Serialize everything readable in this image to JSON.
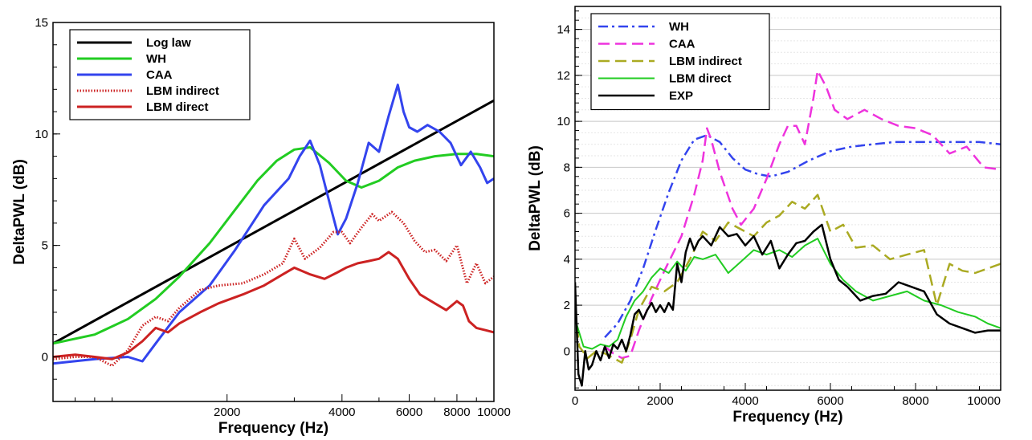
{
  "chart_data": [
    {
      "type": "line",
      "xlabel": "Frequency (Hz)",
      "ylabel": "DeltaPWL (dB)",
      "xscale": "log",
      "xlim": [
        700,
        10000
      ],
      "ylim": [
        -2,
        15
      ],
      "xticks": [
        2000,
        4000,
        6000,
        8000,
        10000
      ],
      "xtick_labels": [
        "2000",
        "4000",
        "6000",
        "8000",
        "10000"
      ],
      "yticks": [
        0,
        5,
        10,
        15
      ],
      "ytick_labels": [
        "0",
        "5",
        "10",
        "15"
      ],
      "grid": false,
      "legend_position": "top-left",
      "series": [
        {
          "name": "Log law",
          "color": "#000000",
          "dash": "solid",
          "width": 3,
          "x": [
            700,
            10000
          ],
          "y": [
            0.6,
            11.5
          ]
        },
        {
          "name": "WH",
          "color": "#22cc22",
          "dash": "solid",
          "width": 3,
          "x": [
            700,
            900,
            1100,
            1300,
            1500,
            1800,
            2100,
            2400,
            2700,
            3000,
            3300,
            3700,
            4100,
            4500,
            5000,
            5600,
            6200,
            7000,
            8000,
            9000,
            10000
          ],
          "y": [
            0.6,
            1.0,
            1.7,
            2.6,
            3.6,
            5.1,
            6.6,
            7.9,
            8.8,
            9.3,
            9.4,
            8.7,
            7.9,
            7.6,
            7.9,
            8.5,
            8.8,
            9.0,
            9.1,
            9.1,
            9.0
          ]
        },
        {
          "name": "CAA",
          "color": "#3344ee",
          "dash": "solid",
          "width": 3,
          "x": [
            700,
            900,
            1100,
            1200,
            1300,
            1500,
            1800,
            2100,
            2500,
            2900,
            3100,
            3300,
            3500,
            3700,
            3900,
            4100,
            4400,
            4700,
            5000,
            5300,
            5600,
            5800,
            6000,
            6300,
            6700,
            7200,
            7700,
            8200,
            8700,
            9200,
            9600,
            10000
          ],
          "y": [
            -0.3,
            -0.1,
            0.0,
            -0.2,
            0.6,
            2.0,
            3.2,
            4.8,
            6.8,
            8.0,
            9.0,
            9.7,
            8.6,
            7.0,
            5.5,
            6.2,
            7.8,
            9.6,
            9.2,
            10.8,
            12.2,
            11.0,
            10.3,
            10.1,
            10.4,
            10.1,
            9.6,
            8.6,
            9.2,
            8.5,
            7.8,
            8.0
          ]
        },
        {
          "name": "LBM indirect",
          "color": "#cc2222",
          "dash": "dotted",
          "width": 3,
          "x": [
            700,
            800,
            900,
            1000,
            1100,
            1200,
            1300,
            1400,
            1500,
            1700,
            1900,
            2200,
            2500,
            2800,
            3000,
            3200,
            3500,
            3800,
            4000,
            4200,
            4500,
            4800,
            5000,
            5400,
            5800,
            6200,
            6600,
            7000,
            7500,
            8000,
            8500,
            9000,
            9500,
            10000
          ],
          "y": [
            -0.1,
            0.0,
            0.0,
            -0.4,
            0.3,
            1.4,
            1.8,
            1.6,
            2.2,
            3.0,
            3.2,
            3.3,
            3.7,
            4.2,
            5.3,
            4.4,
            4.9,
            5.6,
            5.6,
            5.1,
            5.8,
            6.4,
            6.1,
            6.5,
            6.0,
            5.2,
            4.7,
            4.8,
            4.3,
            5.0,
            3.3,
            4.2,
            3.3,
            3.6
          ]
        },
        {
          "name": "LBM direct",
          "color": "#cc2222",
          "dash": "solid",
          "width": 3,
          "x": [
            700,
            800,
            900,
            1000,
            1100,
            1200,
            1300,
            1400,
            1500,
            1700,
            1900,
            2200,
            2500,
            2800,
            3000,
            3300,
            3600,
            3900,
            4100,
            4400,
            4700,
            5000,
            5300,
            5600,
            6000,
            6400,
            7000,
            7500,
            8000,
            8300,
            8600,
            9000,
            9500,
            10000
          ],
          "y": [
            0.0,
            0.1,
            0.0,
            -0.1,
            0.2,
            0.7,
            1.3,
            1.1,
            1.5,
            2.0,
            2.4,
            2.8,
            3.2,
            3.7,
            4.0,
            3.7,
            3.5,
            3.8,
            4.0,
            4.2,
            4.3,
            4.4,
            4.7,
            4.4,
            3.5,
            2.8,
            2.4,
            2.1,
            2.5,
            2.3,
            1.6,
            1.3,
            1.2,
            1.1
          ]
        }
      ]
    },
    {
      "type": "line",
      "xlabel": "Frequency (Hz)",
      "ylabel": "DeltaPWL (dB)",
      "xscale": "linear",
      "xlim": [
        0,
        10000
      ],
      "ylim": [
        -1.7,
        15
      ],
      "xticks": [
        0,
        2000,
        4000,
        6000,
        8000,
        10000
      ],
      "xtick_labels": [
        "0",
        "2000",
        "4000",
        "6000",
        "8000",
        "10000"
      ],
      "yticks": [
        0,
        2,
        4,
        6,
        8,
        10,
        12,
        14
      ],
      "ytick_labels": [
        "0",
        "2",
        "4",
        "6",
        "8",
        "10",
        "12",
        "14"
      ],
      "grid": true,
      "legend_position": "top-left",
      "series": [
        {
          "name": "WH",
          "color": "#3344ee",
          "dash": "dashdot",
          "width": 2.5,
          "x": [
            700,
            1000,
            1300,
            1600,
            1900,
            2200,
            2500,
            2800,
            3100,
            3400,
            3700,
            4000,
            4300,
            4600,
            5000,
            5500,
            6000,
            6500,
            7000,
            7500,
            8000,
            8500,
            9000,
            9500,
            10000
          ],
          "y": [
            0.6,
            1.2,
            2.2,
            3.6,
            5.3,
            6.9,
            8.3,
            9.2,
            9.4,
            9.1,
            8.4,
            7.9,
            7.7,
            7.6,
            7.8,
            8.3,
            8.7,
            8.9,
            9.0,
            9.1,
            9.1,
            9.1,
            9.1,
            9.1,
            9.0
          ]
        },
        {
          "name": "CAA",
          "color": "#ee33dd",
          "dash": "dashed",
          "width": 2.5,
          "x": [
            700,
            900,
            1100,
            1300,
            1500,
            1800,
            2100,
            2500,
            2800,
            3000,
            3100,
            3200,
            3400,
            3700,
            3900,
            4200,
            4500,
            4800,
            5000,
            5200,
            5400,
            5600,
            5700,
            5900,
            6100,
            6400,
            6800,
            7200,
            7600,
            8000,
            8400,
            8800,
            9200,
            9600,
            10000
          ],
          "y": [
            0.2,
            -0.1,
            -0.3,
            -0.2,
            0.9,
            2.3,
            3.5,
            5.0,
            6.8,
            8.3,
            9.7,
            9.2,
            7.8,
            6.2,
            5.5,
            6.2,
            7.5,
            9.0,
            9.8,
            9.8,
            9.0,
            11.0,
            12.2,
            11.5,
            10.5,
            10.1,
            10.5,
            10.1,
            9.8,
            9.7,
            9.4,
            8.6,
            8.9,
            8.0,
            7.9
          ]
        },
        {
          "name": "LBM indirect",
          "color": "#aaaa22",
          "dash": "dashed",
          "width": 2.5,
          "x": [
            0,
            100,
            300,
            500,
            700,
            900,
            1100,
            1300,
            1500,
            1800,
            2100,
            2400,
            2700,
            3000,
            3300,
            3600,
            3900,
            4200,
            4500,
            4800,
            5100,
            5400,
            5700,
            6000,
            6300,
            6600,
            7000,
            7400,
            7800,
            8200,
            8500,
            8800,
            9100,
            9400,
            9700,
            10000
          ],
          "y": [
            1.8,
            0.2,
            -0.3,
            0.0,
            -0.1,
            -0.3,
            -0.5,
            0.5,
            1.8,
            2.8,
            2.6,
            3.0,
            4.0,
            5.2,
            4.8,
            5.6,
            5.3,
            5.0,
            5.6,
            5.9,
            6.5,
            6.2,
            6.8,
            5.2,
            5.5,
            4.5,
            4.6,
            4.0,
            4.2,
            4.4,
            2.0,
            3.8,
            3.5,
            3.4,
            3.6,
            3.8
          ]
        },
        {
          "name": "LBM direct",
          "color": "#22cc22",
          "dash": "solid",
          "width": 2,
          "x": [
            0,
            200,
            400,
            600,
            800,
            1000,
            1200,
            1400,
            1600,
            1800,
            2000,
            2200,
            2400,
            2600,
            2800,
            3000,
            3300,
            3600,
            3900,
            4200,
            4500,
            4800,
            5100,
            5400,
            5700,
            6000,
            6300,
            6600,
            7000,
            7400,
            7800,
            8200,
            8600,
            9000,
            9400,
            9700,
            10000
          ],
          "y": [
            1.4,
            0.2,
            0.1,
            0.3,
            0.2,
            0.5,
            1.5,
            2.2,
            2.6,
            3.2,
            3.6,
            3.4,
            3.9,
            3.5,
            4.1,
            4.0,
            4.2,
            3.4,
            3.9,
            4.4,
            4.2,
            4.4,
            4.1,
            4.6,
            4.9,
            3.8,
            3.1,
            2.6,
            2.2,
            2.4,
            2.6,
            2.2,
            2.0,
            1.7,
            1.5,
            1.2,
            1.0
          ]
        },
        {
          "name": "EXP",
          "color": "#000000",
          "dash": "solid",
          "width": 2.5,
          "x": [
            0,
            80,
            160,
            240,
            320,
            400,
            500,
            600,
            700,
            800,
            900,
            1000,
            1100,
            1200,
            1300,
            1400,
            1500,
            1600,
            1700,
            1800,
            1900,
            2000,
            2100,
            2200,
            2300,
            2400,
            2500,
            2600,
            2700,
            2800,
            2900,
            3000,
            3200,
            3400,
            3600,
            3800,
            4000,
            4200,
            4400,
            4600,
            4800,
            5000,
            5200,
            5400,
            5600,
            5800,
            6000,
            6200,
            6400,
            6700,
            7000,
            7300,
            7600,
            7900,
            8200,
            8500,
            8800,
            9100,
            9400,
            9700,
            10000
          ],
          "y": [
            3.0,
            -1.0,
            -1.5,
            0.0,
            -0.8,
            -0.6,
            0.0,
            -0.4,
            0.2,
            -0.3,
            0.3,
            0.1,
            0.5,
            0.0,
            0.7,
            1.6,
            1.8,
            1.4,
            1.8,
            2.1,
            1.7,
            2.0,
            1.7,
            2.1,
            1.8,
            3.8,
            3.0,
            4.3,
            4.9,
            4.4,
            4.8,
            5.0,
            4.6,
            5.4,
            5.0,
            5.1,
            4.6,
            5.0,
            4.2,
            4.8,
            3.6,
            4.2,
            4.7,
            4.8,
            5.2,
            5.5,
            4.0,
            3.1,
            2.8,
            2.2,
            2.4,
            2.5,
            3.0,
            2.8,
            2.6,
            1.6,
            1.2,
            1.0,
            0.8,
            0.9,
            0.9
          ]
        }
      ]
    }
  ]
}
